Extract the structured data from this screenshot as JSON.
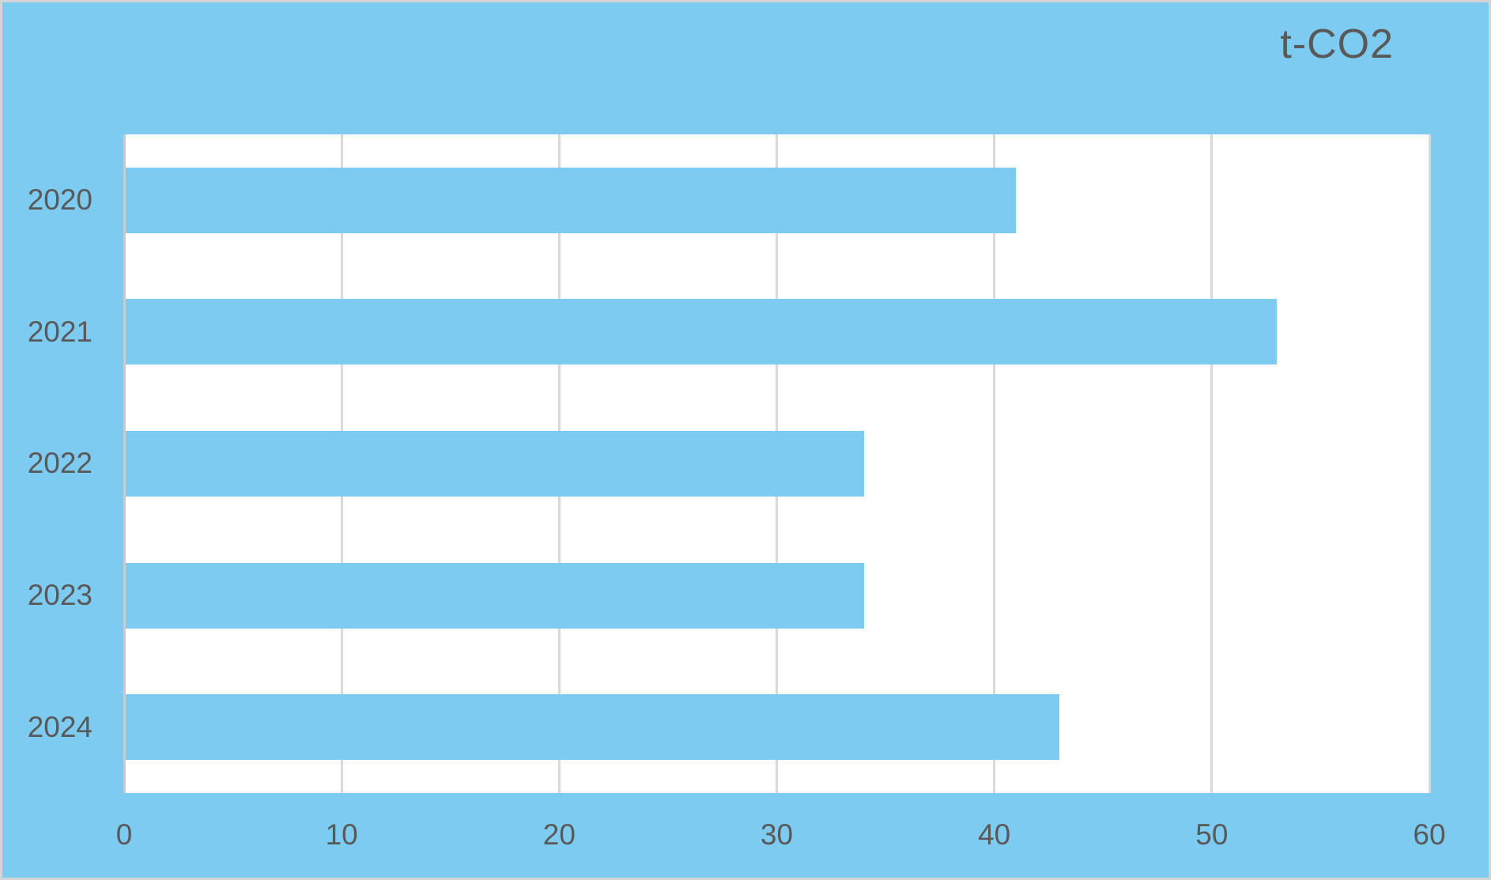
{
  "chart_data": {
    "type": "bar",
    "orientation": "horizontal",
    "title": "t-CO2",
    "categories": [
      "2020",
      "2021",
      "2022",
      "2023",
      "2024"
    ],
    "values": [
      41,
      53,
      34,
      34,
      43
    ],
    "xlabel": "",
    "ylabel": "",
    "xlim": [
      0,
      60
    ],
    "x_ticks": [
      0,
      10,
      20,
      30,
      40,
      50,
      60
    ],
    "grid": true,
    "legend": false,
    "colors": {
      "bar": "#7dcbf1",
      "chart_background": "#7dcbf1",
      "plot_background": "#ffffff",
      "gridline": "#d9d9d9",
      "axis_line": "#c4cdd3",
      "text": "#595959",
      "border": "#d4d4d4"
    }
  }
}
